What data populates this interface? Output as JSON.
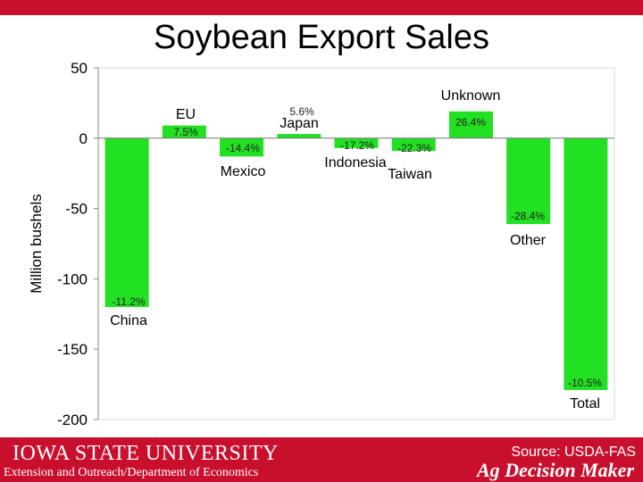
{
  "title": "Soybean Export Sales",
  "footer": {
    "logo_text": "IOWA STATE UNIVERSITY",
    "department": "Extension and Outreach/Department of Economics",
    "source": "Source: USDA-FAS",
    "brand": "Ag Decision Maker"
  },
  "chart_data": {
    "type": "bar",
    "title": "Soybean Export Sales",
    "ylabel": "Million bushels",
    "ylim": [
      -200,
      50
    ],
    "yticks": [
      50,
      0,
      -50,
      -100,
      -150,
      -200
    ],
    "grid": false,
    "legend": "none",
    "bar_color": "#22e022",
    "categories": [
      "China",
      "EU",
      "Mexico",
      "Japan",
      "Indonesia",
      "Taiwan",
      "Unknown",
      "Other",
      "Total"
    ],
    "values": [
      -120,
      9,
      -13,
      3,
      -7,
      -9,
      19,
      -61,
      -179
    ],
    "data_labels": [
      "-11.2%",
      "7.5%",
      "-14.4%",
      "5.6%",
      "-17.2%",
      "-22.3%",
      "26.4%",
      "-28.4%",
      "-10.5%"
    ]
  }
}
